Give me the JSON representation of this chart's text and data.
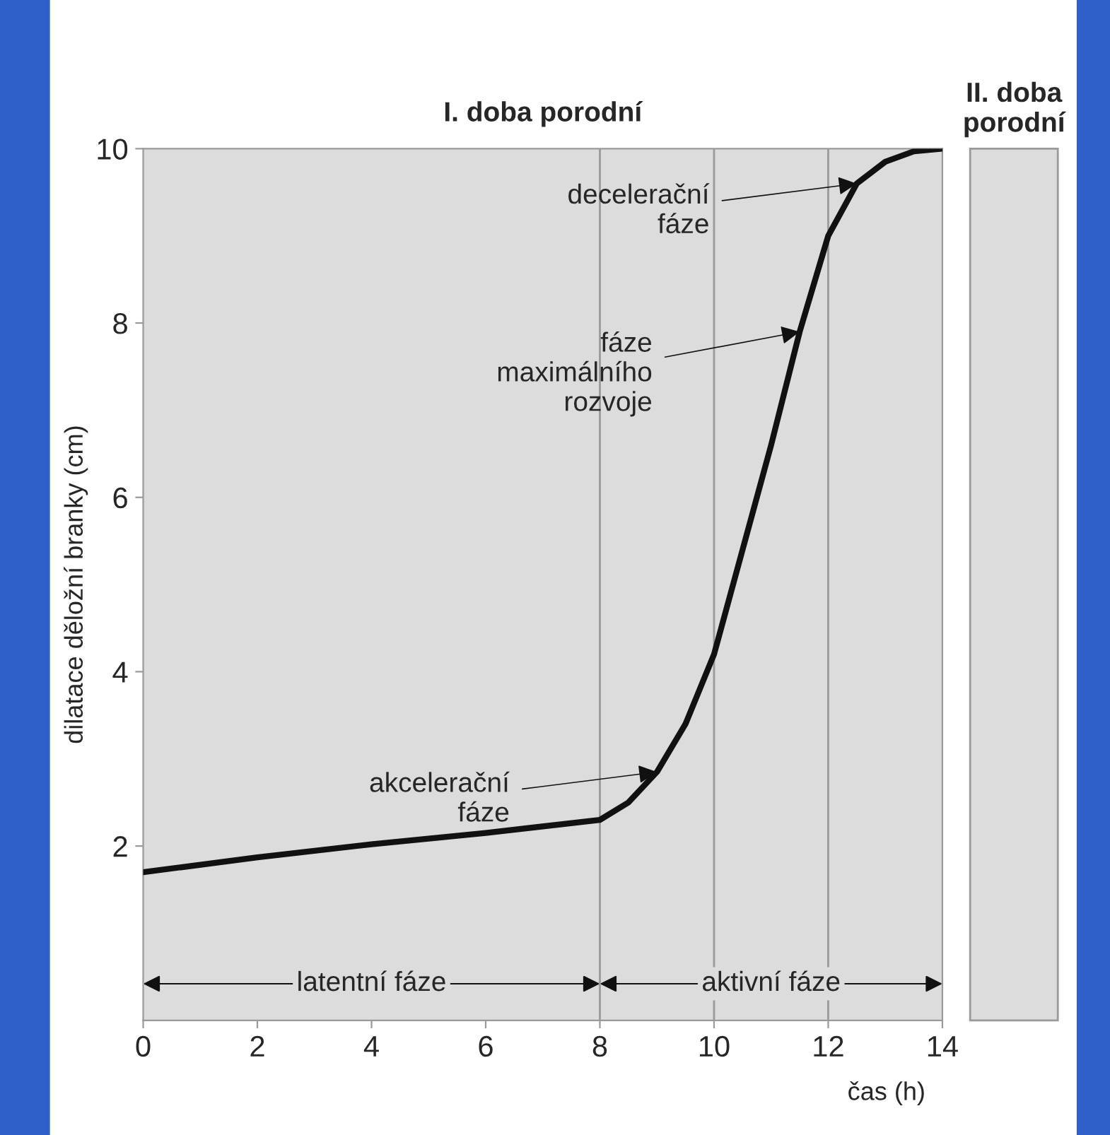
{
  "chart_data": {
    "type": "line",
    "title": "I. doba porodní",
    "xlabel": "čas (h)",
    "ylabel": "dilatace děložní branky (cm)",
    "x": [
      0,
      2,
      4,
      6,
      8,
      8.5,
      9,
      9.5,
      10,
      10.5,
      11,
      11.5,
      12,
      12.5,
      13,
      13.5,
      14
    ],
    "series": [
      {
        "color": "#111111",
        "values": [
          1.7,
          1.87,
          2.02,
          2.15,
          2.3,
          2.5,
          2.85,
          3.4,
          4.2,
          5.4,
          6.6,
          7.9,
          9.0,
          9.6,
          9.85,
          9.97,
          10
        ]
      }
    ],
    "xlim": [
      0,
      14
    ],
    "ylim": [
      0,
      10
    ],
    "xticks": [
      0,
      2,
      4,
      6,
      8,
      10,
      12,
      14
    ],
    "yticks": [
      2,
      4,
      6,
      8,
      10
    ],
    "grid": false,
    "legend": false,
    "marker": "none",
    "line_style": "solid",
    "ref_lines": [
      {
        "axis": "x",
        "value": 8,
        "color": "#9a9a9a"
      },
      {
        "axis": "x",
        "value": 10,
        "color": "#9a9a9a"
      },
      {
        "axis": "x",
        "value": 12,
        "color": "#9a9a9a"
      }
    ],
    "annotations": [
      {
        "text": "decelerační\nfáze",
        "x": 12.5,
        "y": 9.6
      },
      {
        "text": "fáze\nmaximálního\nrozvoje",
        "x": 11.5,
        "y": 7.9
      },
      {
        "text": "akcelerační\nfáze",
        "x": 9,
        "y": 2.85
      },
      "II. doba\nporodní",
      "latentní fáze",
      "aktivní fáze"
    ]
  }
}
